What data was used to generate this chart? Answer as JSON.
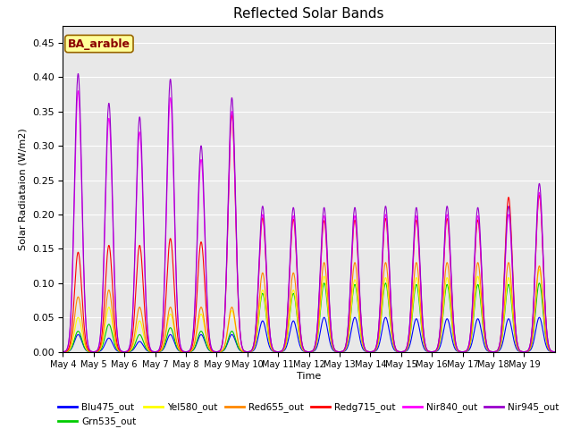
{
  "title": "Reflected Solar Bands",
  "xlabel": "Time",
  "ylabel": "Solar Radiataion (W/m2)",
  "annotation": "BA_arable",
  "ylim": [
    0.0,
    0.475
  ],
  "yticks": [
    0.0,
    0.05,
    0.1,
    0.15,
    0.2,
    0.25,
    0.3,
    0.35,
    0.4,
    0.45
  ],
  "bands": [
    {
      "name": "Blu475_out",
      "color": "#0000ff"
    },
    {
      "name": "Grn535_out",
      "color": "#00cc00"
    },
    {
      "name": "Yel580_out",
      "color": "#ffff00"
    },
    {
      "name": "Red655_out",
      "color": "#ff8800"
    },
    {
      "name": "Redg715_out",
      "color": "#ff0000"
    },
    {
      "name": "Nir840_out",
      "color": "#ff00ff"
    },
    {
      "name": "Nir945_out",
      "color": "#9900cc"
    }
  ],
  "background_color": "#e8e8e8",
  "tick_labels": [
    "May 4",
    "May 5",
    "May 6",
    "May 7",
    "May 8",
    "May 9",
    "May 10",
    "May 11",
    "May 12",
    "May 13",
    "May 14",
    "May 15",
    "May 16",
    "May 17",
    "May 18",
    "May 19"
  ],
  "day_peaks": {
    "Nir945_out": [
      0.405,
      0.362,
      0.342,
      0.397,
      0.3,
      0.37,
      0.212,
      0.21,
      0.21,
      0.21,
      0.212,
      0.21,
      0.212,
      0.21,
      0.212,
      0.245
    ],
    "Nir840_out": [
      0.38,
      0.34,
      0.32,
      0.37,
      0.28,
      0.35,
      0.2,
      0.198,
      0.198,
      0.198,
      0.2,
      0.198,
      0.2,
      0.198,
      0.2,
      0.232
    ],
    "Redg715_out": [
      0.145,
      0.155,
      0.155,
      0.165,
      0.16,
      0.345,
      0.195,
      0.193,
      0.191,
      0.192,
      0.194,
      0.192,
      0.194,
      0.192,
      0.225,
      0.228
    ],
    "Red655_out": [
      0.08,
      0.09,
      0.065,
      0.065,
      0.065,
      0.065,
      0.115,
      0.115,
      0.13,
      0.13,
      0.13,
      0.13,
      0.13,
      0.13,
      0.13,
      0.125
    ],
    "Yel580_out": [
      0.05,
      0.065,
      0.045,
      0.055,
      0.055,
      0.06,
      0.09,
      0.09,
      0.11,
      0.105,
      0.108,
      0.108,
      0.108,
      0.11,
      0.108,
      0.12
    ],
    "Grn535_out": [
      0.03,
      0.04,
      0.025,
      0.035,
      0.03,
      0.03,
      0.085,
      0.085,
      0.1,
      0.098,
      0.1,
      0.098,
      0.098,
      0.098,
      0.098,
      0.1
    ],
    "Blu475_out": [
      0.025,
      0.02,
      0.015,
      0.025,
      0.025,
      0.025,
      0.045,
      0.045,
      0.05,
      0.05,
      0.05,
      0.048,
      0.048,
      0.048,
      0.048,
      0.05
    ]
  }
}
